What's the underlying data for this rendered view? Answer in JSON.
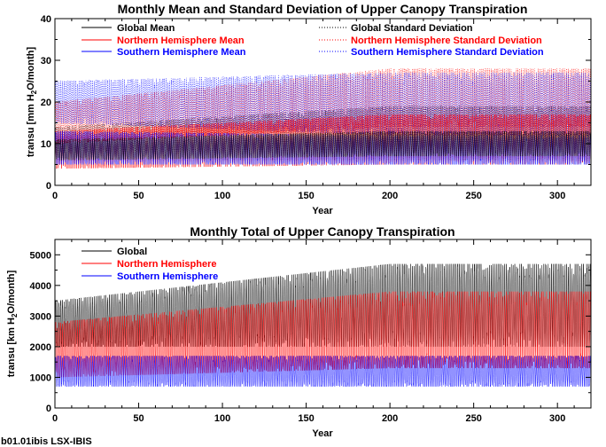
{
  "footer": "b01.01ibis LSX-IBIS",
  "colors": {
    "global": "#000000",
    "north": "#ff0000",
    "south": "#0000ff"
  },
  "chart_data": [
    {
      "type": "line",
      "title": "Monthly Mean and Standard Deviation of Upper Canopy Transpiration",
      "xlabel": "Year",
      "ylabel_main": "transu [mm H",
      "ylabel_sub": "2",
      "ylabel_tail": "O/month]",
      "xlim": [
        0,
        320
      ],
      "ylim": [
        0,
        40
      ],
      "xticks": [
        0,
        50,
        100,
        150,
        200,
        250,
        300
      ],
      "yticks": [
        0,
        10,
        20,
        30,
        40
      ],
      "legend_position": "top",
      "legend_left": [
        {
          "label": "Global Mean",
          "color": "#000000",
          "style": "solid"
        },
        {
          "label": "Northern Hemisphere Mean",
          "color": "#ff0000",
          "style": "solid"
        },
        {
          "label": "Southern Hemisphere Mean",
          "color": "#0000ff",
          "style": "solid"
        }
      ],
      "legend_right": [
        {
          "label": "Global Standard Deviation",
          "color": "#000000",
          "style": "dotted"
        },
        {
          "label": "Northern Hemisphere Standard Deviation",
          "color": "#ff0000",
          "style": "dotted"
        },
        {
          "label": "Southern Hemisphere Standard Deviation",
          "color": "#0000ff",
          "style": "dotted"
        }
      ],
      "series": [
        {
          "color": "#000000",
          "style": "dotted",
          "min_start": 6,
          "max_start": 14,
          "min_end": 6,
          "max_end": 19
        },
        {
          "color": "#ff0000",
          "style": "dotted",
          "min_start": 10,
          "max_start": 20,
          "min_end": 14,
          "max_end": 28
        },
        {
          "color": "#0000ff",
          "style": "dotted",
          "min_start": 15,
          "max_start": 25,
          "min_end": 12,
          "max_end": 27
        },
        {
          "color": "#ff0000",
          "style": "solid",
          "min_start": 4,
          "max_start": 13,
          "min_end": 5,
          "max_end": 17
        },
        {
          "color": "#0000ff",
          "style": "solid",
          "min_start": 5,
          "max_start": 13,
          "min_end": 5,
          "max_end": 12
        },
        {
          "color": "#000000",
          "style": "solid",
          "min_start": 6,
          "max_start": 11,
          "min_end": 7,
          "max_end": 13
        }
      ]
    },
    {
      "type": "line",
      "title": "Monthly Total of Upper Canopy Transpiration",
      "xlabel": "Year",
      "ylabel_main": "transu [km H",
      "ylabel_sub": "2",
      "ylabel_tail": "O/month]",
      "xlim": [
        0,
        320
      ],
      "ylim": [
        0,
        5500
      ],
      "xticks": [
        0,
        50,
        100,
        150,
        200,
        250,
        300
      ],
      "yticks": [
        0,
        1000,
        2000,
        3000,
        4000,
        5000
      ],
      "legend_position": "top-left",
      "legend": [
        {
          "label": "Global",
          "color": "#000000",
          "style": "solid"
        },
        {
          "label": "Northern Hemisphere",
          "color": "#ff0000",
          "style": "solid"
        },
        {
          "label": "Southern Hemisphere",
          "color": "#0000ff",
          "style": "solid"
        }
      ],
      "series": [
        {
          "color": "#000000",
          "style": "solid",
          "min_start": 2000,
          "max_start": 3500,
          "min_end": 2000,
          "max_end": 4700
        },
        {
          "color": "#ff0000",
          "style": "solid",
          "min_start": 1000,
          "max_start": 2800,
          "min_end": 1300,
          "max_end": 3800
        },
        {
          "color": "#0000ff",
          "style": "solid",
          "min_start": 700,
          "max_start": 1700,
          "min_end": 700,
          "max_end": 1700
        }
      ]
    }
  ]
}
